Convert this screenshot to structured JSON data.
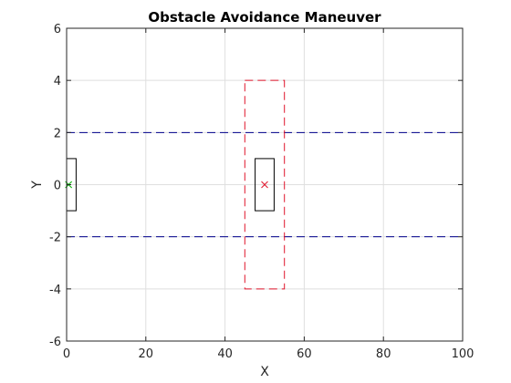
{
  "chart_data": {
    "type": "line",
    "title": "Obstacle Avoidance Maneuver",
    "xlabel": "X",
    "ylabel": "Y",
    "xlim": [
      0,
      100
    ],
    "ylim": [
      -6,
      6
    ],
    "xticks": [
      0,
      20,
      40,
      60,
      80,
      100
    ],
    "yticks": [
      -6,
      -4,
      -2,
      0,
      2,
      4,
      6
    ],
    "grid": true,
    "lane_boundaries": [
      {
        "y": 2,
        "x": [
          0,
          100
        ],
        "style": "dashed",
        "color": "#00008b"
      },
      {
        "y": -2,
        "x": [
          0,
          100
        ],
        "style": "dashed",
        "color": "#00008b"
      }
    ],
    "rectangles": [
      {
        "x": [
          0,
          2.4
        ],
        "y": [
          -1,
          1
        ],
        "color": "#000000",
        "style": "solid"
      },
      {
        "x": [
          47.6,
          52.4
        ],
        "y": [
          -1,
          1
        ],
        "color": "#000000",
        "style": "solid"
      },
      {
        "x": [
          45,
          55
        ],
        "y": [
          -4,
          4
        ],
        "color": "#e0142b",
        "style": "dashed"
      }
    ],
    "markers": [
      {
        "x": 0.5,
        "y": 0,
        "symbol": "x",
        "color": "#00b000"
      },
      {
        "x": 50,
        "y": 0,
        "symbol": "x",
        "color": "#e0142b"
      }
    ]
  }
}
